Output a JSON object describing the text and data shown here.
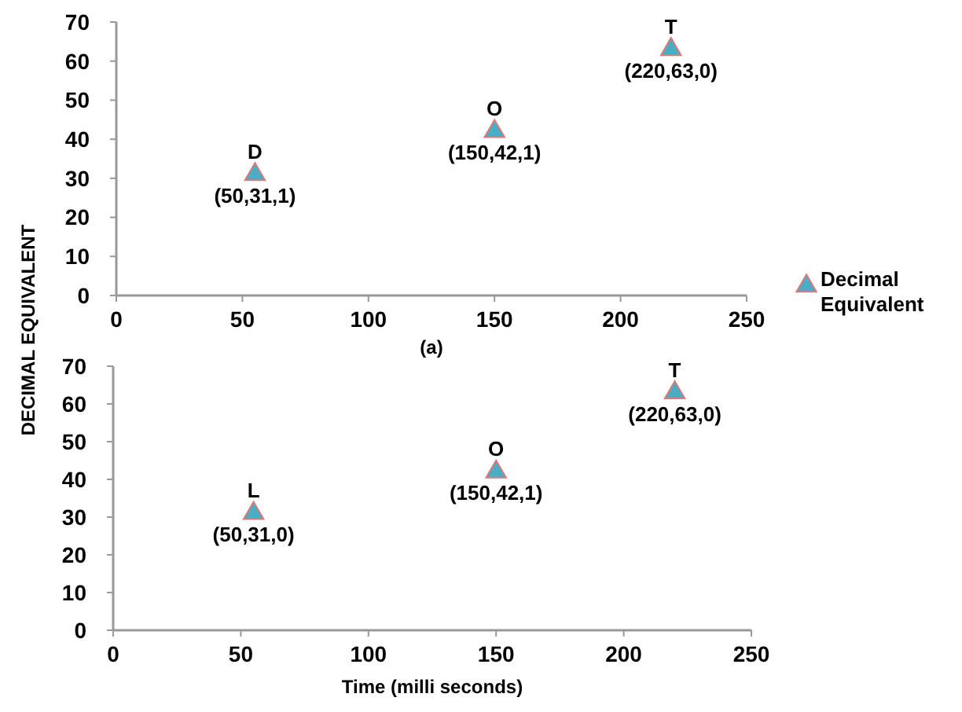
{
  "chart_data": [
    {
      "type": "scatter",
      "xlabel": "(a)",
      "ylabel": "DECIMAL EQUIVALENT",
      "x": [
        55,
        150,
        220
      ],
      "series": [
        {
          "name": "Decimal Equivalent",
          "color": "#4bacc6",
          "values": [
            31,
            42,
            63
          ]
        }
      ],
      "xlim": [
        0,
        250
      ],
      "xticks": [
        0,
        50,
        100,
        150,
        200,
        250
      ],
      "ylim": [
        0,
        70
      ],
      "yticks": [
        0,
        10,
        20,
        30,
        40,
        50,
        60,
        70
      ],
      "grid": false,
      "legend": "right",
      "marker": "triangle",
      "annotations": [
        {
          "text": "D",
          "x": 55,
          "y": 31
        },
        {
          "text": "(50,31,1)",
          "x": 55,
          "y": 31
        },
        {
          "text": "O",
          "x": 150,
          "y": 42
        },
        {
          "text": "(150,42,1)",
          "x": 150,
          "y": 42
        },
        {
          "text": "T",
          "x": 220,
          "y": 63
        },
        {
          "text": "(220,63,0)",
          "x": 220,
          "y": 63
        }
      ]
    },
    {
      "type": "scatter",
      "xlabel": "Time (milli seconds)",
      "x": [
        55,
        150,
        220
      ],
      "series": [
        {
          "color": "#4bacc6",
          "values": [
            31,
            42,
            63
          ]
        }
      ],
      "xlim": [
        0,
        250
      ],
      "xticks": [
        0,
        50,
        100,
        150,
        200,
        250
      ],
      "ylim": [
        0,
        70
      ],
      "yticks": [
        0,
        10,
        20,
        30,
        40,
        50,
        60,
        70
      ],
      "grid": false,
      "legend": false,
      "marker": "triangle",
      "annotations": [
        {
          "text": "L",
          "x": 55,
          "y": 31
        },
        {
          "text": "(50,31,0)",
          "x": 55,
          "y": 31
        },
        {
          "text": "O",
          "x": 150,
          "y": 42
        },
        {
          "text": "(150,42,1)",
          "x": 150,
          "y": 42
        },
        {
          "text": "T",
          "x": 220,
          "y": 63
        },
        {
          "text": "(220,63,0)",
          "x": 220,
          "y": 63
        }
      ]
    }
  ]
}
